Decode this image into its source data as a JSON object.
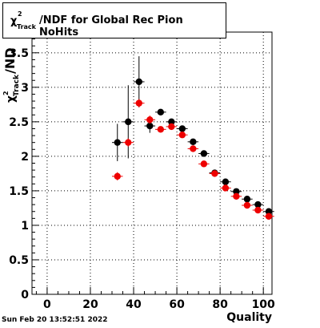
{
  "title": {
    "chi": "χ",
    "sup": "2",
    "sub": "Track",
    "rest": "/NDF for Global Rec Pion NoHits"
  },
  "timestamp": "Sun Feb 20 13:52:51 2022",
  "chart_data": {
    "type": "scatter",
    "title": "χ²_Track/NDF for Global Rec Pion NoHits",
    "xlabel": "Quality",
    "ylabel": "χ²_Track/NDF",
    "xlim": [
      -7,
      104
    ],
    "ylim": [
      0,
      3.8
    ],
    "xticks": [
      0,
      20,
      40,
      60,
      80,
      100
    ],
    "yticks": [
      0,
      0.5,
      1,
      1.5,
      2,
      2.5,
      3,
      3.5
    ],
    "ytick_labels": [
      "0",
      "0.5",
      "1",
      "1.5",
      "2",
      "2.5",
      "3",
      "3.5"
    ],
    "grid": true,
    "series": [
      {
        "color": "#000000",
        "points": [
          {
            "x": 32.5,
            "y": 2.2,
            "yerr": 0.27,
            "xerr": 2.5
          },
          {
            "x": 37.5,
            "y": 2.5,
            "yerr": 0.53,
            "xerr": 2.5
          },
          {
            "x": 42.5,
            "y": 3.08,
            "yerr": 0.37,
            "xerr": 2.5
          },
          {
            "x": 47.5,
            "y": 2.44,
            "yerr": 0.1,
            "xerr": 2.5
          },
          {
            "x": 52.5,
            "y": 2.64,
            "yerr": 0.04,
            "xerr": 2.5
          },
          {
            "x": 57.5,
            "y": 2.5,
            "yerr": 0.03,
            "xerr": 2.5
          },
          {
            "x": 62.5,
            "y": 2.4,
            "yerr": 0.03,
            "xerr": 2.5
          },
          {
            "x": 67.5,
            "y": 2.21,
            "yerr": 0.02,
            "xerr": 2.5
          },
          {
            "x": 72.5,
            "y": 2.04,
            "yerr": 0.02,
            "xerr": 2.5
          },
          {
            "x": 77.5,
            "y": 1.76,
            "yerr": 0.02,
            "xerr": 2.5
          },
          {
            "x": 82.5,
            "y": 1.63,
            "yerr": 0.02,
            "xerr": 2.5
          },
          {
            "x": 87.5,
            "y": 1.49,
            "yerr": 0.02,
            "xerr": 2.5
          },
          {
            "x": 92.5,
            "y": 1.38,
            "yerr": 0.02,
            "xerr": 2.5
          },
          {
            "x": 97.5,
            "y": 1.3,
            "yerr": 0.02,
            "xerr": 2.5
          },
          {
            "x": 102.5,
            "y": 1.2,
            "yerr": 0.02,
            "xerr": 2.5
          }
        ]
      },
      {
        "color": "#ee0000",
        "points": [
          {
            "x": 32.5,
            "y": 1.71,
            "yerr": 0.06,
            "xerr": 2.5
          },
          {
            "x": 37.5,
            "y": 2.2,
            "yerr": 0.06,
            "xerr": 2.5
          },
          {
            "x": 42.5,
            "y": 2.77,
            "yerr": 0.06,
            "xerr": 2.5
          },
          {
            "x": 47.5,
            "y": 2.53,
            "yerr": 0.06,
            "xerr": 2.5
          },
          {
            "x": 52.5,
            "y": 2.39,
            "yerr": 0.03,
            "xerr": 2.5
          },
          {
            "x": 57.5,
            "y": 2.43,
            "yerr": 0.03,
            "xerr": 2.5
          },
          {
            "x": 62.5,
            "y": 2.31,
            "yerr": 0.02,
            "xerr": 2.5
          },
          {
            "x": 67.5,
            "y": 2.11,
            "yerr": 0.02,
            "xerr": 2.5
          },
          {
            "x": 72.5,
            "y": 1.89,
            "yerr": 0.02,
            "xerr": 2.5
          },
          {
            "x": 77.5,
            "y": 1.75,
            "yerr": 0.02,
            "xerr": 2.5
          },
          {
            "x": 82.5,
            "y": 1.54,
            "yerr": 0.02,
            "xerr": 2.5
          },
          {
            "x": 87.5,
            "y": 1.42,
            "yerr": 0.02,
            "xerr": 2.5
          },
          {
            "x": 92.5,
            "y": 1.29,
            "yerr": 0.02,
            "xerr": 2.5
          },
          {
            "x": 97.5,
            "y": 1.22,
            "yerr": 0.02,
            "xerr": 2.5
          },
          {
            "x": 102.5,
            "y": 1.13,
            "yerr": 0.02,
            "xerr": 2.5
          }
        ]
      }
    ]
  }
}
